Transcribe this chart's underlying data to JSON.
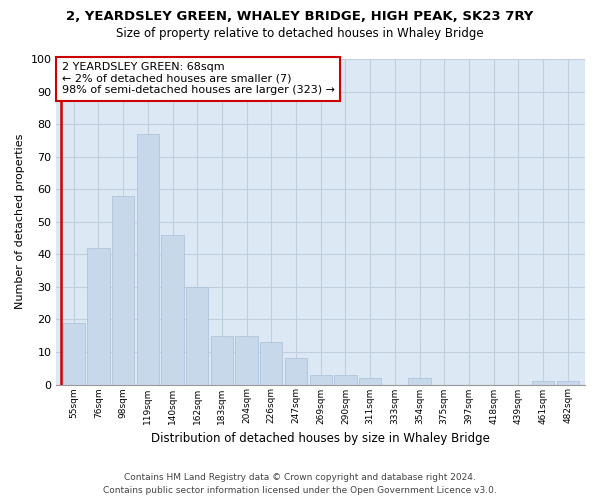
{
  "title": "2, YEARDSLEY GREEN, WHALEY BRIDGE, HIGH PEAK, SK23 7RY",
  "subtitle": "Size of property relative to detached houses in Whaley Bridge",
  "xlabel": "Distribution of detached houses by size in Whaley Bridge",
  "ylabel": "Number of detached properties",
  "bar_color": "#c8d8eb",
  "bar_edgecolor": "#a8c0d8",
  "categories": [
    "55sqm",
    "76sqm",
    "98sqm",
    "119sqm",
    "140sqm",
    "162sqm",
    "183sqm",
    "204sqm",
    "226sqm",
    "247sqm",
    "269sqm",
    "290sqm",
    "311sqm",
    "333sqm",
    "354sqm",
    "375sqm",
    "397sqm",
    "418sqm",
    "439sqm",
    "461sqm",
    "482sqm"
  ],
  "values": [
    19,
    42,
    58,
    77,
    46,
    30,
    15,
    15,
    13,
    8,
    3,
    3,
    2,
    0,
    2,
    0,
    0,
    0,
    0,
    1,
    1
  ],
  "vline_color": "#cc0000",
  "annotation_box_text": "2 YEARDSLEY GREEN: 68sqm\n← 2% of detached houses are smaller (7)\n98% of semi-detached houses are larger (323) →",
  "annotation_box_color": "#cc0000",
  "ylim": [
    0,
    100
  ],
  "yticks": [
    0,
    10,
    20,
    30,
    40,
    50,
    60,
    70,
    80,
    90,
    100
  ],
  "footer_line1": "Contains HM Land Registry data © Crown copyright and database right 2024.",
  "footer_line2": "Contains public sector information licensed under the Open Government Licence v3.0.",
  "plot_bg_color": "#dce8f4",
  "grid_color": "#c0cfe0"
}
